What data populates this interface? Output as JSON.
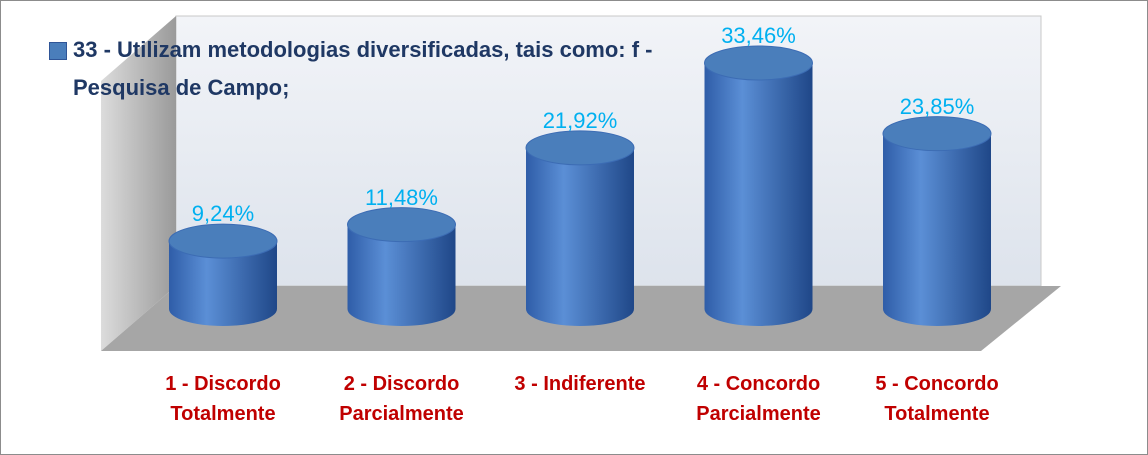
{
  "chart_data": {
    "type": "bar",
    "categories": [
      "1 - Discordo Totalmente",
      "2 - Discordo Parcialmente",
      "3 - Indiferente",
      "4 - Concordo Parcialmente",
      "5 - Concordo Totalmente"
    ],
    "series": [
      {
        "name": "33 - Utilizam metodologias diversificadas, tais como: f - Pesquisa de Campo;",
        "color": "#4a7ebb",
        "values": [
          9.24,
          11.48,
          21.92,
          33.46,
          23.85
        ],
        "value_labels": [
          "9,24%",
          "11,48%",
          "21,92%",
          "33,46%",
          "23,85%"
        ]
      }
    ]
  }
}
